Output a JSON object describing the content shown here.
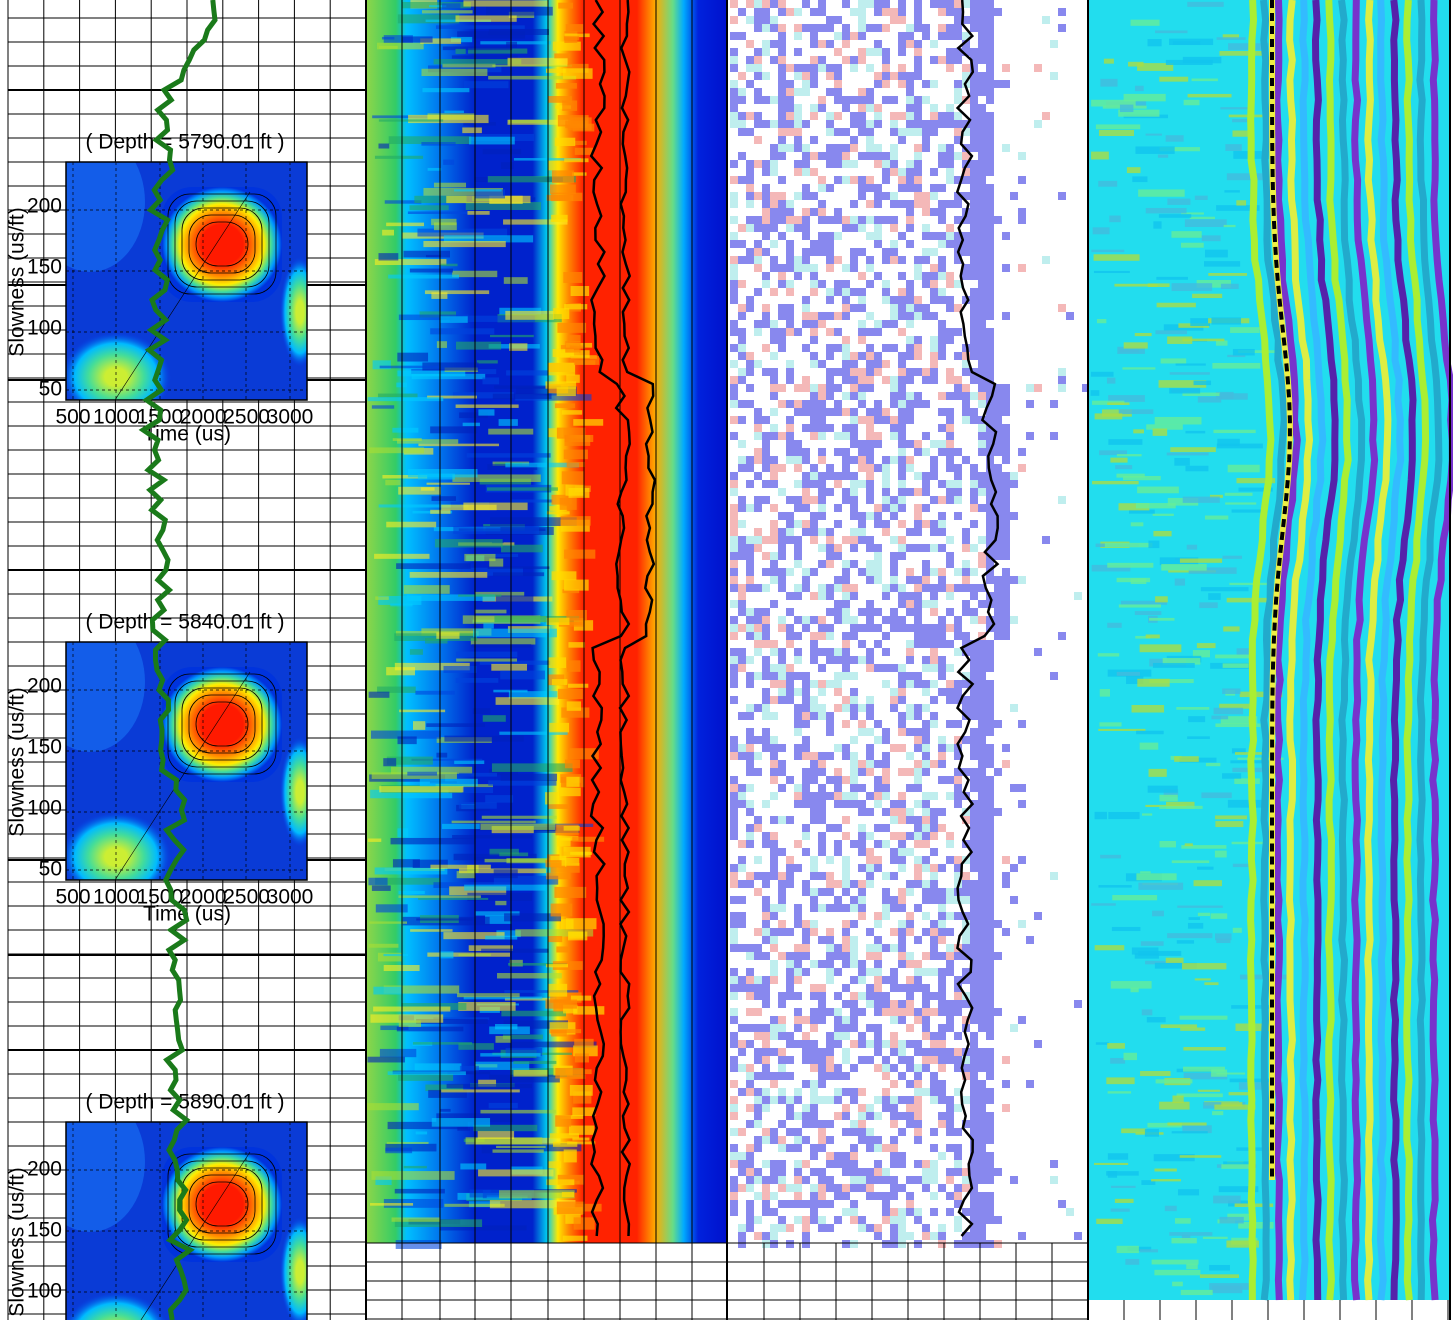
{
  "insets": [
    {
      "depth_label": "( Depth = 5790.01 ft )",
      "y_label": "Slowness (us/ft)",
      "x_label": "Time (us)",
      "y_ticks": [
        "50",
        "100",
        "150",
        "200"
      ],
      "x_ticks": [
        "500",
        "1000",
        "1500",
        "2000",
        "2500",
        "3000"
      ]
    },
    {
      "depth_label": "( Depth = 5840.01 ft )",
      "y_label": "Slowness (us/ft)",
      "x_label": "Time (us)",
      "y_ticks": [
        "50",
        "100",
        "150",
        "200"
      ],
      "x_ticks": [
        "500",
        "1000",
        "1500",
        "2000",
        "2500",
        "3000"
      ]
    },
    {
      "depth_label": "( Depth = 5890.01 ft )",
      "y_label": "Slowness (us/ft)",
      "y_ticks": [
        "100",
        "150",
        "200"
      ]
    }
  ]
}
